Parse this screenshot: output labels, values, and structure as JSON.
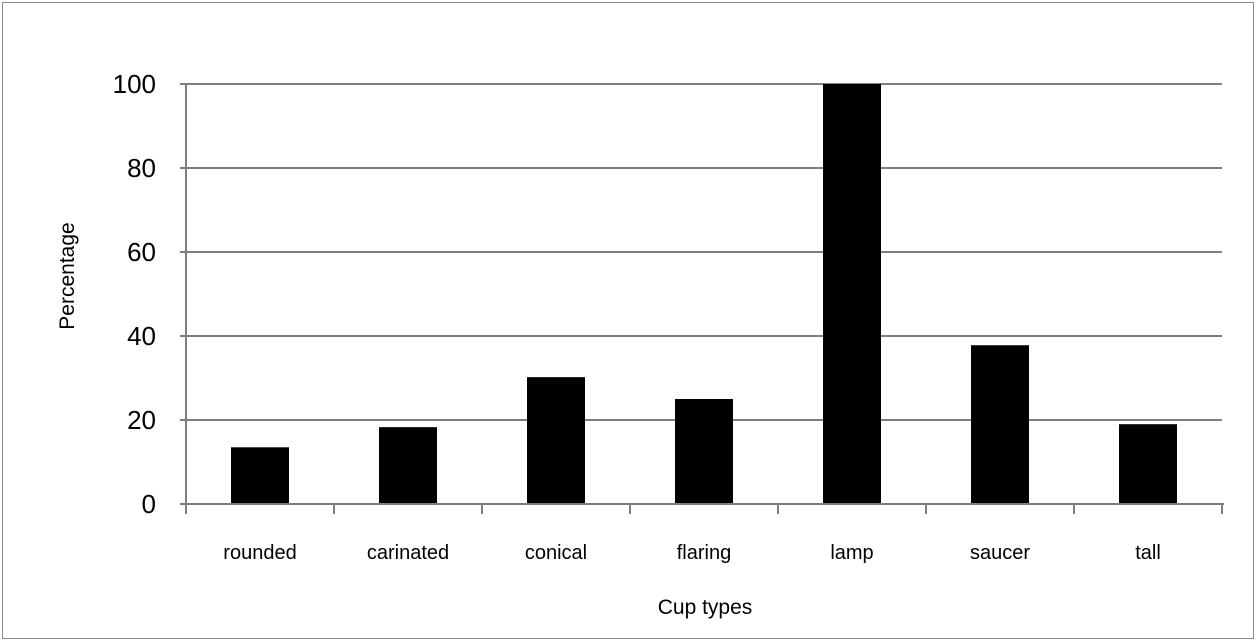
{
  "chart_data": {
    "type": "bar",
    "categories": [
      "rounded",
      "carinated",
      "conical",
      "flaring",
      "lamp",
      "saucer",
      "tall"
    ],
    "values": [
      13.5,
      18.3,
      30.2,
      25.0,
      100,
      37.8,
      19.0
    ],
    "title": "",
    "xlabel": "Cup types",
    "ylabel": "Percentage",
    "ylim": [
      0,
      100
    ],
    "yticks": [
      "0",
      "20",
      "40",
      "60",
      "80",
      "100"
    ],
    "grid": true,
    "legend": "none",
    "bar_color": "#000000",
    "grid_color": "#7f7f7f"
  }
}
